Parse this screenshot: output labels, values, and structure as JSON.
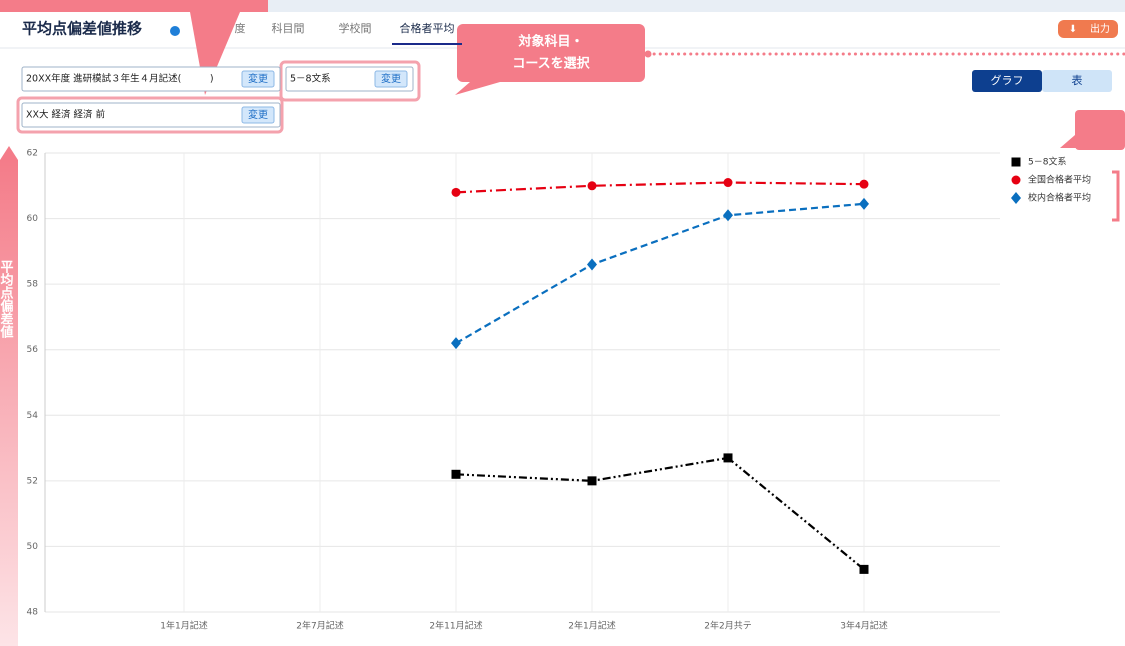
{
  "header": {
    "title": "平均点偏差値推移",
    "tabs": [
      "度",
      "科目間",
      "学校間",
      "合格者平均"
    ],
    "export": "出力"
  },
  "selectors": [
    {
      "text": "20XX年度 進研模試３年生４月記述(　　　)",
      "button": "変更"
    },
    {
      "text": "5－8文系",
      "button": "変更"
    },
    {
      "text": "XX大 経済 経済 前",
      "button": "変更"
    }
  ],
  "view_toggle": [
    "グラフ",
    "表"
  ],
  "callout": {
    "lines": [
      "対象科目・",
      "コースを選択"
    ]
  },
  "side_label": "平均点偏差値",
  "chart_data": {
    "type": "line",
    "categories": [
      "1年1月記述",
      "2年7月記述",
      "2年11月記述",
      "2年1月記述",
      "2年2月共テ",
      "3年4月記述"
    ],
    "series": [
      {
        "name": "5－8文系",
        "color": "#000000",
        "marker": "square",
        "dash": "8 3 2 3 2 3",
        "values": [
          null,
          null,
          52.2,
          52.0,
          52.7,
          49.3
        ]
      },
      {
        "name": "全国合格者平均",
        "color": "#e60012",
        "marker": "circle",
        "dash": "10 4 2 4",
        "values": [
          null,
          null,
          60.8,
          61.0,
          61.1,
          61.05
        ]
      },
      {
        "name": "校内合格者平均",
        "color": "#0a6fbf",
        "marker": "diamond",
        "dash": "7 4",
        "values": [
          null,
          null,
          56.2,
          58.6,
          60.1,
          60.45
        ]
      }
    ],
    "ylim": [
      48,
      62
    ],
    "yticks": [
      48,
      50,
      52,
      54,
      56,
      58,
      60,
      62
    ],
    "grid": true,
    "legend": "top-right"
  }
}
